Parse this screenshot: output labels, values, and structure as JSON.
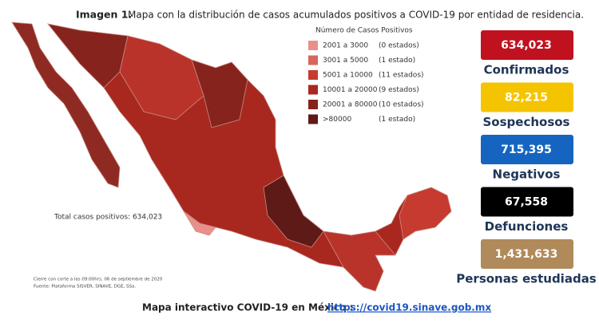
{
  "header": {
    "label": "Imagen 1.",
    "title": "Mapa con la distribución de casos acumulados positivos a COVID-19 por entidad de residencia."
  },
  "legend": {
    "title": "Número de Casos Positivos",
    "rows": [
      {
        "range": "2001 a   3000",
        "states": "(0 estados)",
        "color": "#e8908a"
      },
      {
        "range": "3001 a   5000",
        "states": "(1 estado)",
        "color": "#d9655d"
      },
      {
        "range": "5001 a 10000",
        "states": "(11 estados)",
        "color": "#c73a30"
      },
      {
        "range": "10001 a 20000",
        "states": "(9 estados)",
        "color": "#a8281f"
      },
      {
        "range": "20001 a 80000",
        "states": "(10 estados)",
        "color": "#86231d"
      },
      {
        "range": ">80000",
        "states": "(1 estado)",
        "color": "#5e1a16"
      }
    ]
  },
  "map_total": "Total casos positivos: 634,023",
  "notes": [
    "Cierre con corte a las 09:00hrs, 06 de septiembre de 2020",
    "Fuente: Plataforma SISVER, SINAVE, DGE, SSa."
  ],
  "stats": [
    {
      "value": "634,023",
      "label": "Confirmados",
      "color": "#c0111f"
    },
    {
      "value": "82,215",
      "label": "Sospechosos",
      "color": "#f5c400"
    },
    {
      "value": "715,395",
      "label": "Negativos",
      "color": "#1565c0"
    },
    {
      "value": "67,558",
      "label": "Defunciones",
      "color": "#000000"
    },
    {
      "value": "1,431,633",
      "label": "Personas estudiadas",
      "color": "#b08a5a"
    }
  ],
  "footer": {
    "text": "Mapa interactivo COVID-19 en México :",
    "link": "https://covid19.sinave.gob.mx"
  }
}
